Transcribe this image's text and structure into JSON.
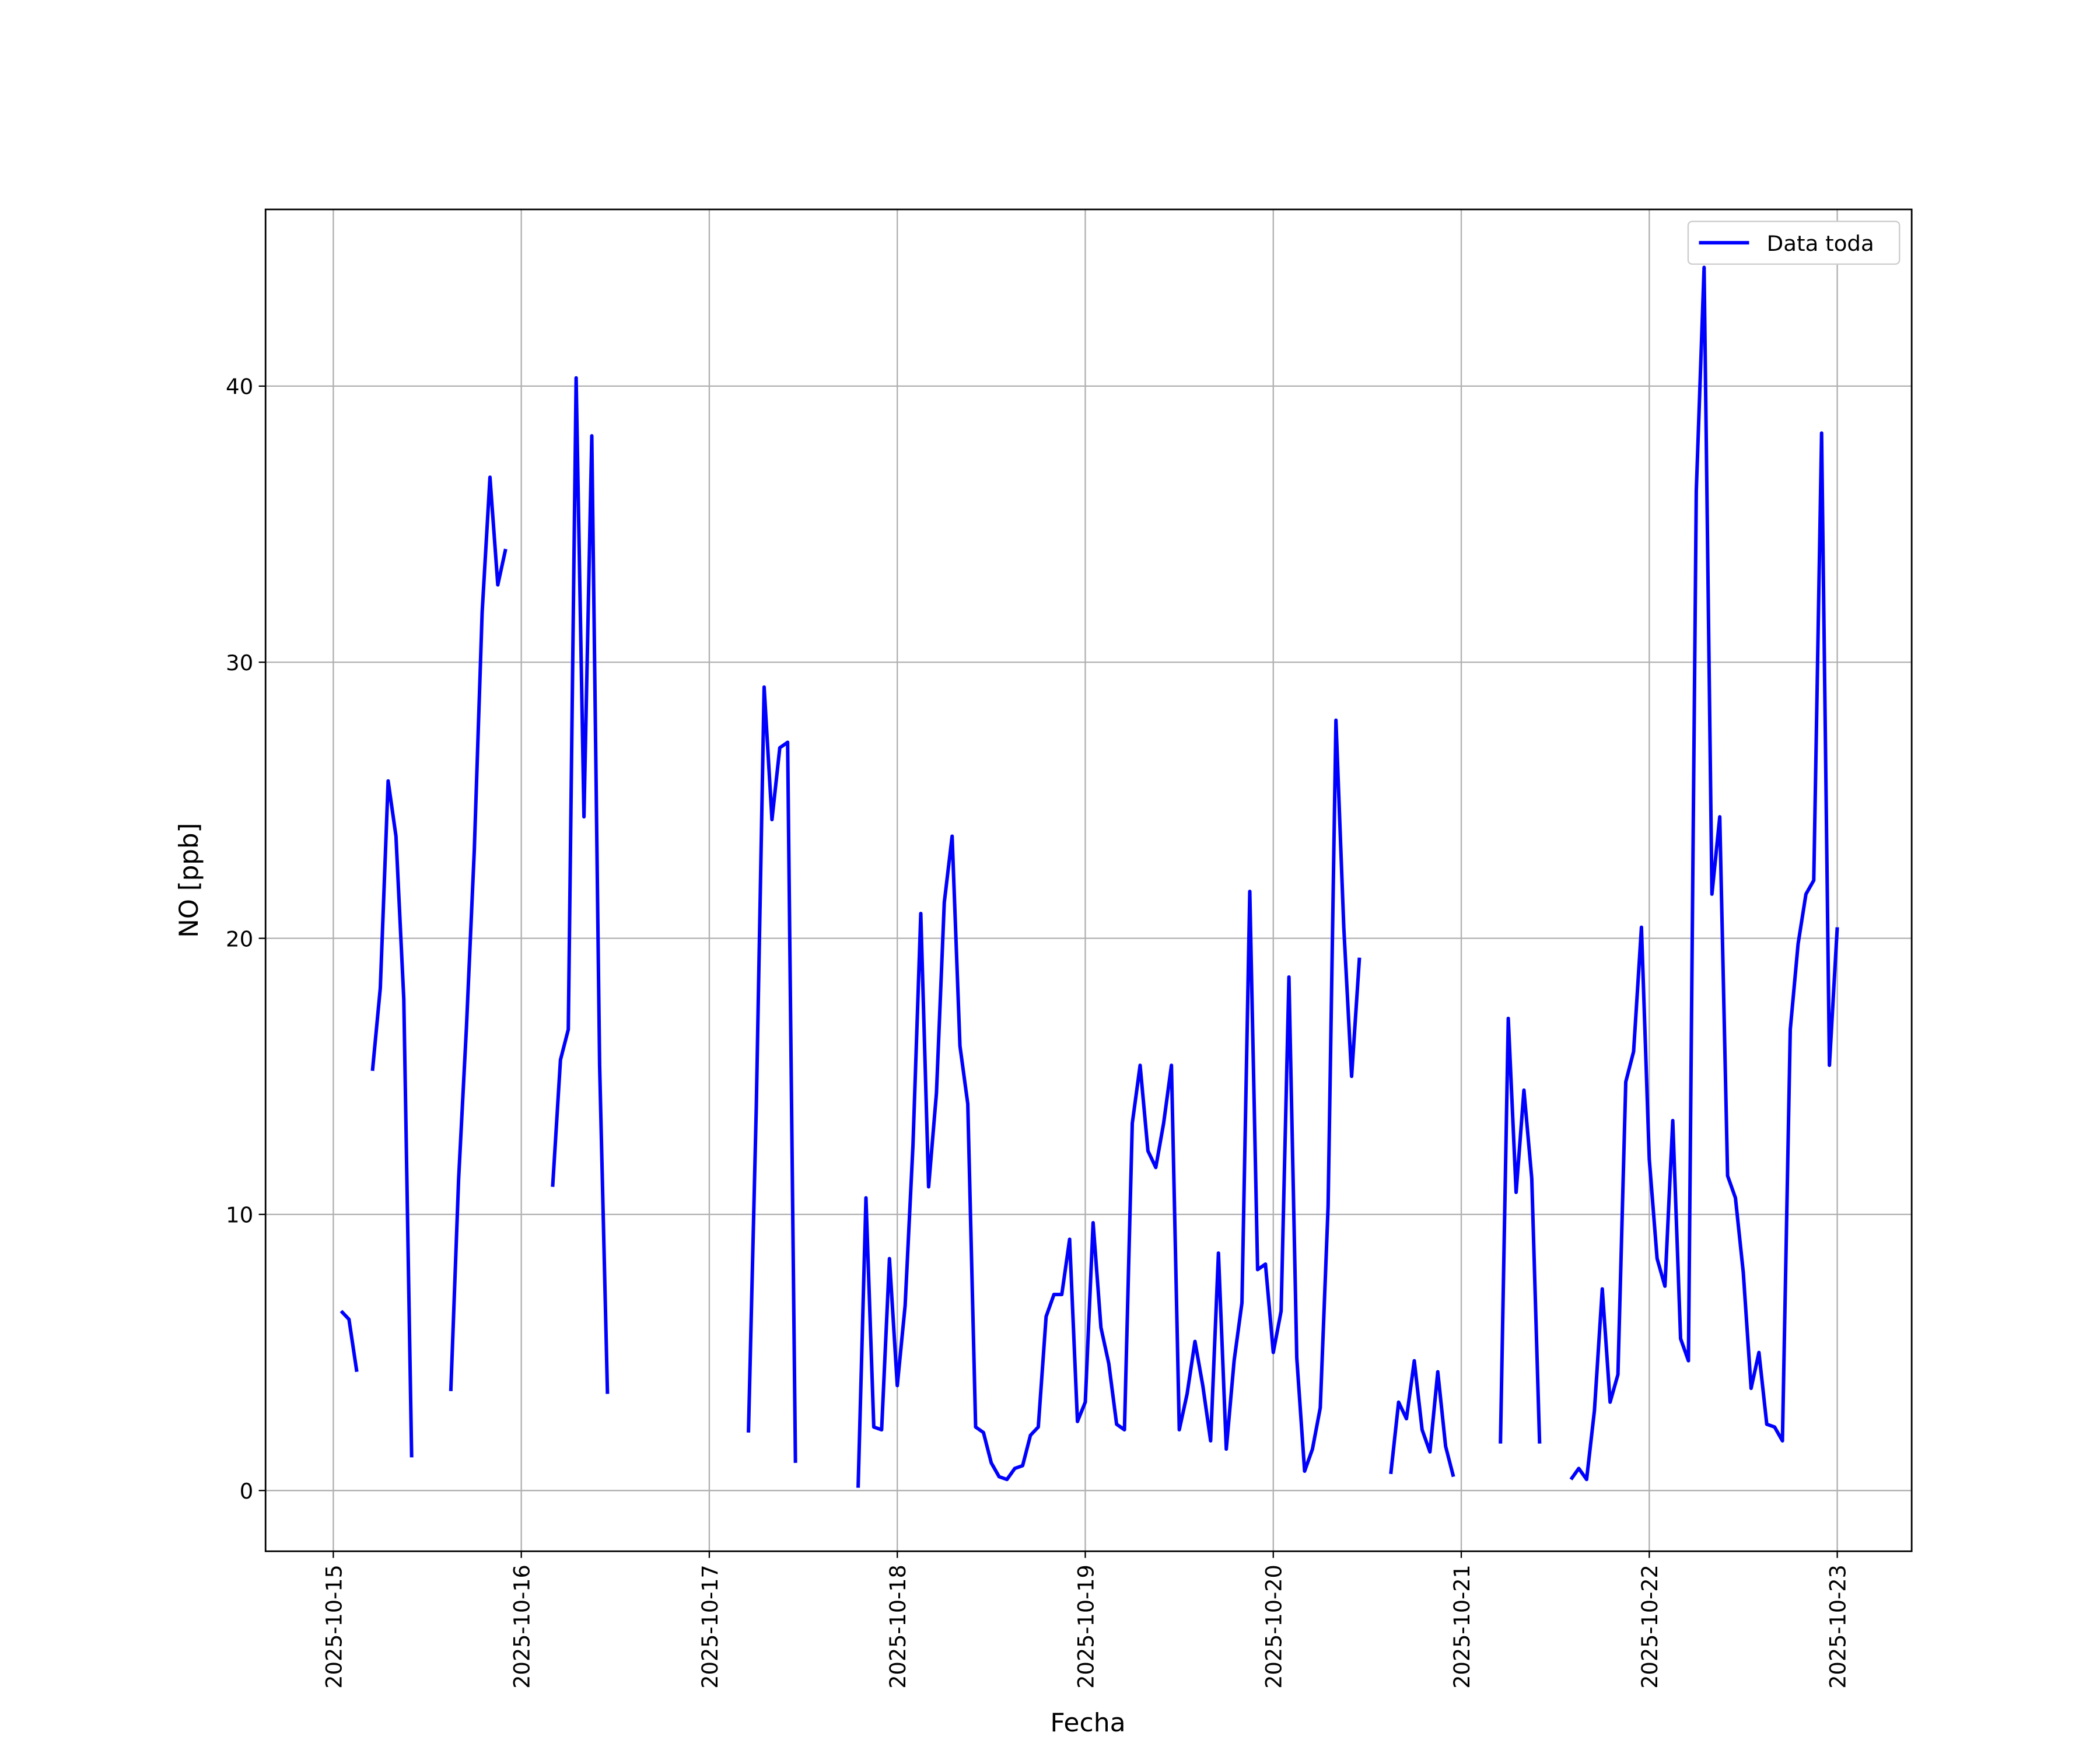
{
  "chart_data": {
    "type": "line",
    "xlabel": "Fecha",
    "ylabel": "NO [ppb]",
    "x": [
      "2025-10-15T01:00",
      "2025-10-15T02:00",
      "2025-10-15T03:00",
      "2025-10-15T04:00",
      "2025-10-15T05:00",
      "2025-10-15T06:00",
      "2025-10-15T07:00",
      "2025-10-15T08:00",
      "2025-10-15T09:00",
      "2025-10-15T10:00",
      "2025-10-15T11:00",
      "2025-10-15T15:00",
      "2025-10-15T16:00",
      "2025-10-15T17:00",
      "2025-10-15T18:00",
      "2025-10-15T19:00",
      "2025-10-15T20:00",
      "2025-10-15T21:00",
      "2025-10-15T22:00",
      "2025-10-15T23:00",
      "2025-10-16T04:00",
      "2025-10-16T05:00",
      "2025-10-16T06:00",
      "2025-10-16T07:00",
      "2025-10-16T08:00",
      "2025-10-16T09:00",
      "2025-10-16T10:00",
      "2025-10-16T11:00",
      "2025-10-16T12:00",
      "2025-10-17T05:00",
      "2025-10-17T06:00",
      "2025-10-17T07:00",
      "2025-10-17T08:00",
      "2025-10-17T09:00",
      "2025-10-17T10:00",
      "2025-10-17T11:00",
      "2025-10-17T12:00",
      "2025-10-17T19:00",
      "2025-10-17T20:00",
      "2025-10-17T21:00",
      "2025-10-17T22:00",
      "2025-10-17T23:00",
      "2025-10-18T00:00",
      "2025-10-18T01:00",
      "2025-10-18T02:00",
      "2025-10-18T03:00",
      "2025-10-18T04:00",
      "2025-10-18T05:00",
      "2025-10-18T06:00",
      "2025-10-18T07:00",
      "2025-10-18T08:00",
      "2025-10-18T09:00",
      "2025-10-18T10:00",
      "2025-10-18T11:00",
      "2025-10-18T12:00",
      "2025-10-18T13:00",
      "2025-10-18T14:00",
      "2025-10-18T15:00",
      "2025-10-18T16:00",
      "2025-10-18T17:00",
      "2025-10-18T18:00",
      "2025-10-18T19:00",
      "2025-10-18T20:00",
      "2025-10-18T21:00",
      "2025-10-18T22:00",
      "2025-10-18T23:00",
      "2025-10-19T00:00",
      "2025-10-19T01:00",
      "2025-10-19T02:00",
      "2025-10-19T03:00",
      "2025-10-19T04:00",
      "2025-10-19T05:00",
      "2025-10-19T06:00",
      "2025-10-19T07:00",
      "2025-10-19T08:00",
      "2025-10-19T09:00",
      "2025-10-19T10:00",
      "2025-10-19T11:00",
      "2025-10-19T12:00",
      "2025-10-19T13:00",
      "2025-10-19T14:00",
      "2025-10-19T15:00",
      "2025-10-19T16:00",
      "2025-10-19T17:00",
      "2025-10-19T18:00",
      "2025-10-19T19:00",
      "2025-10-19T20:00",
      "2025-10-19T21:00",
      "2025-10-19T22:00",
      "2025-10-19T23:00",
      "2025-10-20T00:00",
      "2025-10-20T01:00",
      "2025-10-20T02:00",
      "2025-10-20T03:00",
      "2025-10-20T04:00",
      "2025-10-20T05:00",
      "2025-10-20T06:00",
      "2025-10-20T07:00",
      "2025-10-20T08:00",
      "2025-10-20T09:00",
      "2025-10-20T10:00",
      "2025-10-20T11:00",
      "2025-10-20T12:00",
      "2025-10-20T15:00",
      "2025-10-20T16:00",
      "2025-10-20T17:00",
      "2025-10-20T18:00",
      "2025-10-20T19:00",
      "2025-10-20T20:00",
      "2025-10-20T21:00",
      "2025-10-20T22:00",
      "2025-10-20T23:00",
      "2025-10-21T00:00",
      "2025-10-21T05:00",
      "2025-10-21T06:00",
      "2025-10-21T07:00",
      "2025-10-21T08:00",
      "2025-10-21T09:00",
      "2025-10-21T10:00",
      "2025-10-21T11:00",
      "2025-10-21T14:00",
      "2025-10-21T15:00",
      "2025-10-21T16:00",
      "2025-10-21T17:00",
      "2025-10-21T18:00",
      "2025-10-21T19:00",
      "2025-10-21T20:00",
      "2025-10-21T21:00",
      "2025-10-21T22:00",
      "2025-10-21T23:00",
      "2025-10-22T00:00",
      "2025-10-22T01:00",
      "2025-10-22T02:00",
      "2025-10-22T03:00",
      "2025-10-22T04:00",
      "2025-10-22T05:00",
      "2025-10-22T06:00",
      "2025-10-22T07:00",
      "2025-10-22T08:00",
      "2025-10-22T09:00",
      "2025-10-22T10:00",
      "2025-10-22T11:00",
      "2025-10-22T12:00",
      "2025-10-22T13:00",
      "2025-10-22T14:00",
      "2025-10-22T15:00",
      "2025-10-22T16:00",
      "2025-10-22T17:00",
      "2025-10-22T18:00",
      "2025-10-22T19:00",
      "2025-10-22T20:00",
      "2025-10-22T21:00",
      "2025-10-22T22:00",
      "2025-10-22T23:00",
      "2025-10-23T00:00"
    ],
    "series": [
      {
        "name": "Data toda",
        "color": "#0000ff",
        "values": [
          6.5,
          6.2,
          4.3,
          null,
          15.2,
          18.2,
          25.7,
          23.7,
          17.8,
          1.2,
          null,
          3.6,
          11.3,
          16.8,
          23.2,
          31.8,
          36.7,
          32.8,
          34.1,
          null,
          11.0,
          15.6,
          16.7,
          40.3,
          24.4,
          38.2,
          15.4,
          3.5,
          null,
          2.1,
          13.9,
          29.1,
          24.3,
          26.9,
          27.1,
          1.0,
          null,
          0.1,
          10.6,
          2.3,
          2.2,
          8.4,
          3.8,
          6.7,
          12.5,
          20.9,
          11.0,
          14.4,
          21.3,
          23.7,
          16.1,
          14.0,
          2.3,
          2.1,
          1.0,
          0.5,
          0.4,
          0.8,
          0.9,
          2.0,
          2.3,
          6.3,
          7.1,
          7.1,
          9.1,
          2.5,
          3.2,
          9.7,
          5.9,
          4.6,
          2.4,
          2.2,
          13.3,
          15.4,
          12.3,
          11.7,
          13.3,
          15.4,
          2.2,
          3.5,
          5.4,
          3.8,
          1.8,
          8.6,
          1.5,
          4.7,
          6.8,
          21.7,
          8.0,
          8.2,
          5.0,
          6.5,
          18.6,
          4.8,
          0.7,
          1.5,
          3.0,
          10.3,
          27.9,
          20.4,
          15.0,
          19.3,
          null,
          0.6,
          3.2,
          2.6,
          4.7,
          2.2,
          1.4,
          4.3,
          1.6,
          0.5,
          null,
          1.7,
          17.1,
          10.8,
          14.5,
          11.3,
          1.7,
          null,
          0.4,
          0.8,
          0.4,
          2.9,
          7.3,
          3.2,
          4.2,
          14.8,
          15.9,
          20.4,
          12.0,
          8.4,
          7.4,
          13.4,
          5.5,
          4.7,
          36.2,
          44.3,
          21.6,
          24.4,
          11.4,
          10.6,
          7.9,
          3.7,
          5.0,
          2.4,
          2.3,
          1.8,
          16.7,
          19.8,
          21.6,
          22.1,
          38.3,
          15.4,
          20.4
        ]
      }
    ],
    "xlim": [
      "2025-10-14T15:21",
      "2025-10-23T09:30"
    ],
    "xticks": [
      "2025-10-15",
      "2025-10-16",
      "2025-10-17",
      "2025-10-18",
      "2025-10-19",
      "2025-10-20",
      "2025-10-21",
      "2025-10-22",
      "2025-10-23"
    ],
    "ylim": [
      -2.2,
      46.4
    ],
    "yticks": [
      0,
      10,
      20,
      30,
      40
    ],
    "grid": true,
    "legend": "upper right"
  }
}
